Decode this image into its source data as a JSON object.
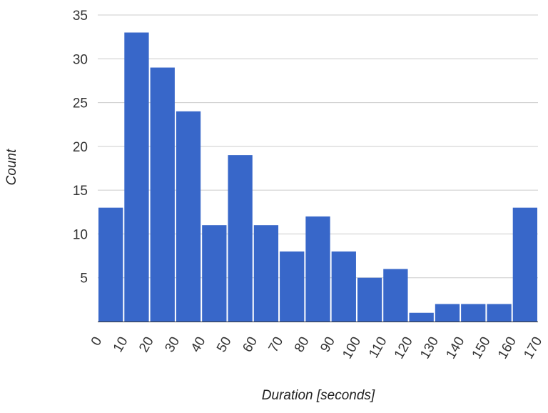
{
  "chart_data": {
    "type": "bar",
    "title": "",
    "xlabel": "Duration [seconds]",
    "ylabel": "Count",
    "x_tick_labels": [
      "0",
      "10",
      "20",
      "30",
      "40",
      "50",
      "60",
      "70",
      "80",
      "90",
      "100",
      "110",
      "120",
      "130",
      "140",
      "150",
      "160",
      "170"
    ],
    "bins": [
      {
        "start": 0,
        "end": 10,
        "value": 13
      },
      {
        "start": 10,
        "end": 20,
        "value": 33
      },
      {
        "start": 20,
        "end": 30,
        "value": 29
      },
      {
        "start": 30,
        "end": 40,
        "value": 24
      },
      {
        "start": 40,
        "end": 50,
        "value": 11
      },
      {
        "start": 50,
        "end": 60,
        "value": 19
      },
      {
        "start": 60,
        "end": 70,
        "value": 11
      },
      {
        "start": 70,
        "end": 80,
        "value": 8
      },
      {
        "start": 80,
        "end": 90,
        "value": 12
      },
      {
        "start": 90,
        "end": 100,
        "value": 8
      },
      {
        "start": 100,
        "end": 110,
        "value": 5
      },
      {
        "start": 110,
        "end": 120,
        "value": 6
      },
      {
        "start": 120,
        "end": 130,
        "value": 1
      },
      {
        "start": 130,
        "end": 140,
        "value": 2
      },
      {
        "start": 140,
        "end": 150,
        "value": 2
      },
      {
        "start": 150,
        "end": 160,
        "value": 2
      },
      {
        "start": 160,
        "end": 170,
        "value": 13
      }
    ],
    "y_ticks": [
      5,
      10,
      15,
      20,
      25,
      30,
      35
    ],
    "ylim": [
      0,
      35
    ],
    "xlim": [
      0,
      170
    ],
    "grid": true,
    "legend": "none",
    "colors": {
      "bar": "#3867c9",
      "grid": "#cccccc",
      "baseline": "#333333"
    }
  }
}
